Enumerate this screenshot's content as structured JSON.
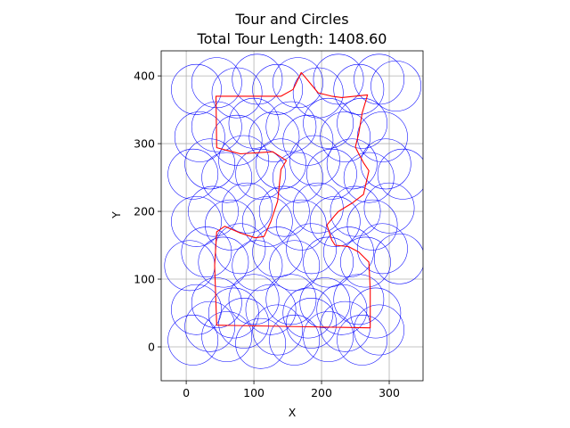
{
  "chart_data": {
    "type": "line",
    "title": "Tour and Circles",
    "subtitle": "Total Tour Length: 1408.60",
    "xlabel": "X",
    "ylabel": "Y",
    "xlim": [
      -37,
      350
    ],
    "ylim": [
      -50,
      437
    ],
    "xticks": [
      0,
      100,
      200,
      300
    ],
    "yticks": [
      0,
      100,
      200,
      300,
      400
    ],
    "grid": true,
    "circle_radius": 37,
    "circle_centers": [
      [
        10,
        10
      ],
      [
        35,
        30
      ],
      [
        60,
        15
      ],
      [
        85,
        35
      ],
      [
        110,
        5
      ],
      [
        135,
        25
      ],
      [
        160,
        10
      ],
      [
        185,
        35
      ],
      [
        210,
        15
      ],
      [
        235,
        30
      ],
      [
        260,
        10
      ],
      [
        285,
        25
      ],
      [
        15,
        55
      ],
      [
        45,
        65
      ],
      [
        70,
        50
      ],
      [
        100,
        70
      ],
      [
        125,
        55
      ],
      [
        155,
        70
      ],
      [
        180,
        50
      ],
      [
        205,
        65
      ],
      [
        230,
        55
      ],
      [
        255,
        70
      ],
      [
        280,
        50
      ],
      [
        5,
        120
      ],
      [
        30,
        140
      ],
      [
        55,
        125
      ],
      [
        80,
        145
      ],
      [
        105,
        120
      ],
      [
        135,
        140
      ],
      [
        160,
        120
      ],
      [
        185,
        145
      ],
      [
        210,
        125
      ],
      [
        240,
        140
      ],
      [
        265,
        125
      ],
      [
        290,
        145
      ],
      [
        315,
        130
      ],
      [
        15,
        185
      ],
      [
        40,
        200
      ],
      [
        65,
        180
      ],
      [
        90,
        205
      ],
      [
        120,
        185
      ],
      [
        145,
        200
      ],
      [
        170,
        180
      ],
      [
        195,
        205
      ],
      [
        220,
        185
      ],
      [
        250,
        200
      ],
      [
        275,
        180
      ],
      [
        300,
        205
      ],
      [
        10,
        255
      ],
      [
        35,
        270
      ],
      [
        60,
        250
      ],
      [
        85,
        275
      ],
      [
        110,
        255
      ],
      [
        140,
        270
      ],
      [
        165,
        250
      ],
      [
        190,
        275
      ],
      [
        215,
        255
      ],
      [
        245,
        270
      ],
      [
        270,
        250
      ],
      [
        295,
        270
      ],
      [
        320,
        255
      ],
      [
        20,
        310
      ],
      [
        45,
        325
      ],
      [
        75,
        305
      ],
      [
        100,
        330
      ],
      [
        130,
        310
      ],
      [
        155,
        325
      ],
      [
        180,
        305
      ],
      [
        210,
        330
      ],
      [
        235,
        310
      ],
      [
        260,
        330
      ],
      [
        290,
        310
      ],
      [
        15,
        380
      ],
      [
        45,
        390
      ],
      [
        75,
        375
      ],
      [
        105,
        395
      ],
      [
        135,
        380
      ],
      [
        165,
        390
      ],
      [
        195,
        375
      ],
      [
        225,
        395
      ],
      [
        255,
        380
      ],
      [
        285,
        395
      ],
      [
        310,
        385
      ]
    ],
    "series": [
      {
        "values": [
          [
            170,
            405
          ],
          [
            195,
            375
          ],
          [
            215,
            370
          ],
          [
            230,
            368
          ],
          [
            268,
            372
          ],
          [
            260,
            345
          ],
          [
            255,
            315
          ],
          [
            250,
            295
          ],
          [
            255,
            285
          ],
          [
            262,
            272
          ],
          [
            270,
            260
          ],
          [
            262,
            225
          ],
          [
            245,
            212
          ],
          [
            225,
            200
          ],
          [
            218,
            192
          ],
          [
            208,
            180
          ],
          [
            215,
            158
          ],
          [
            220,
            150
          ],
          [
            240,
            148
          ],
          [
            255,
            140
          ],
          [
            270,
            125
          ],
          [
            272,
            85
          ],
          [
            272,
            60
          ],
          [
            272,
            28
          ],
          [
            45,
            32
          ],
          [
            42,
            120
          ],
          [
            45,
            170
          ],
          [
            57,
            178
          ],
          [
            66,
            174
          ],
          [
            80,
            168
          ],
          [
            102,
            161
          ],
          [
            115,
            163
          ],
          [
            125,
            185
          ],
          [
            135,
            215
          ],
          [
            140,
            262
          ],
          [
            148,
            275
          ],
          [
            128,
            288
          ],
          [
            80,
            285
          ],
          [
            45,
            294
          ],
          [
            44,
            370
          ],
          [
            140,
            370
          ],
          [
            158,
            380
          ],
          [
            170,
            405
          ]
        ]
      }
    ]
  }
}
